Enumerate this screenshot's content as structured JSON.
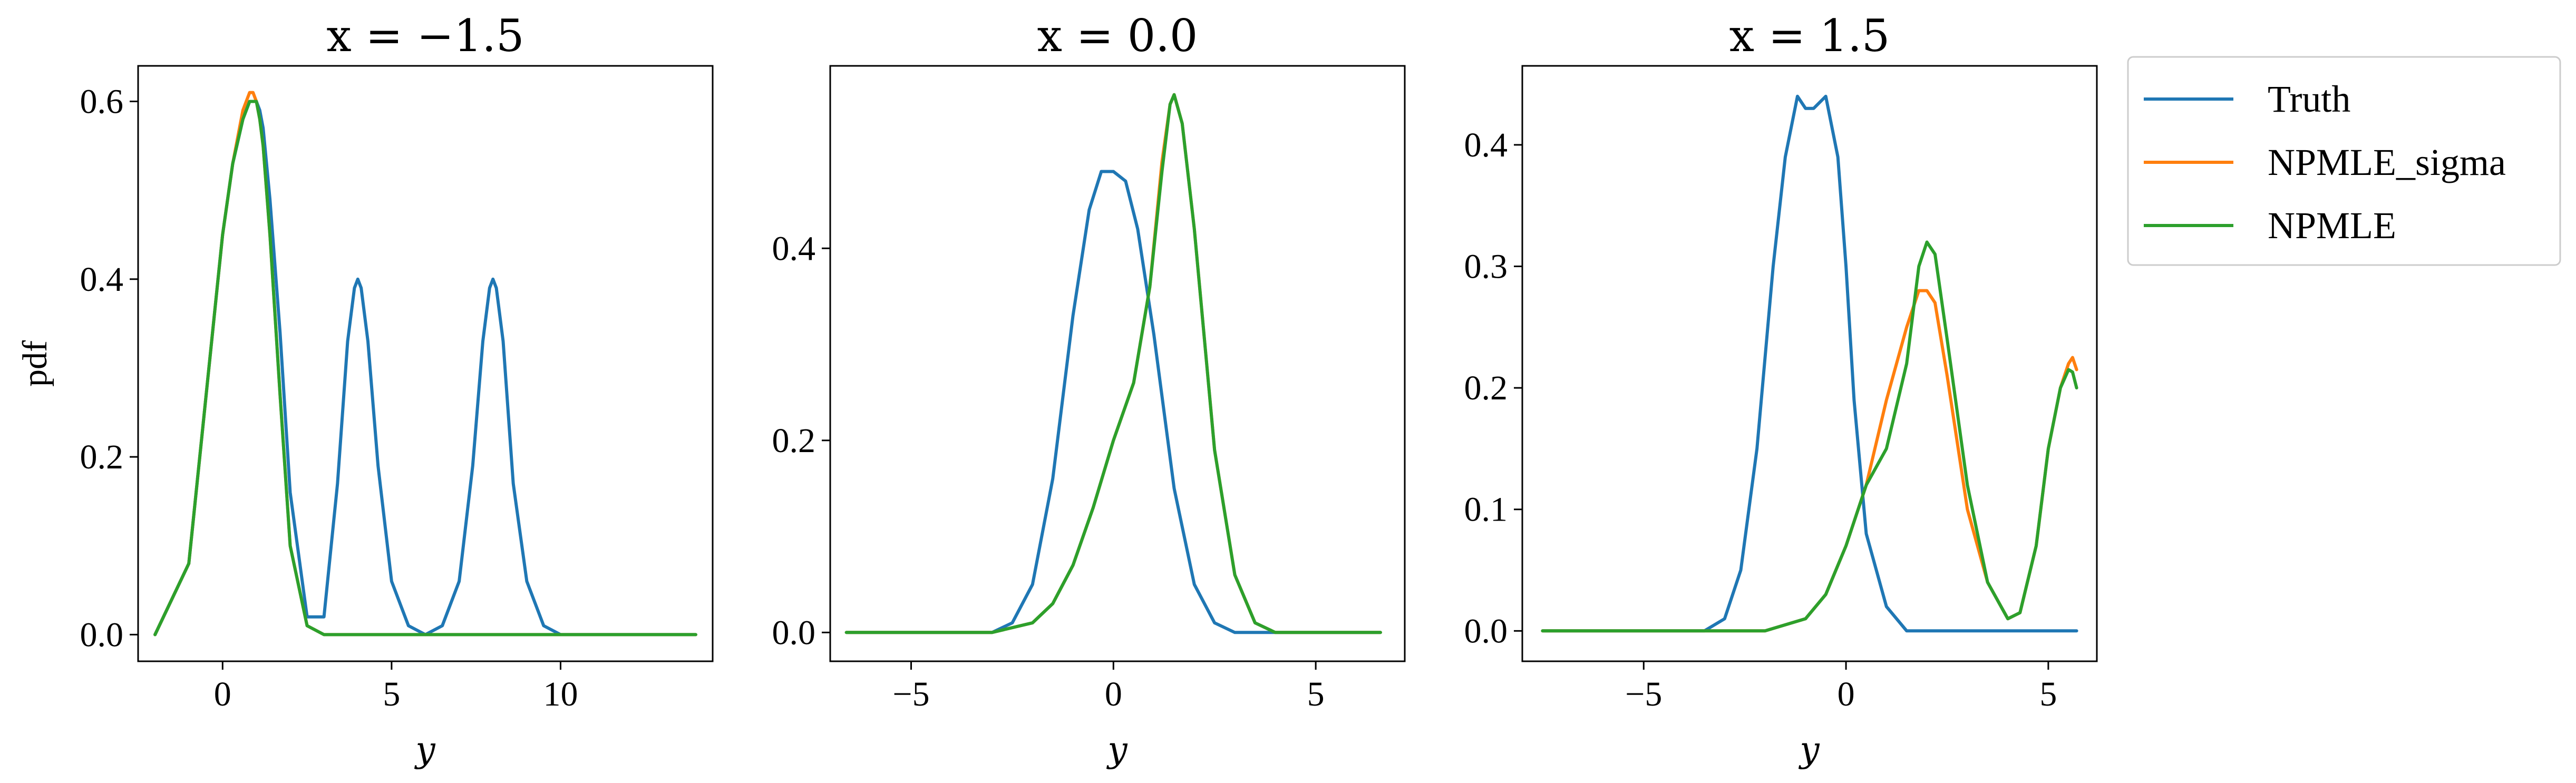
{
  "chart_data": [
    {
      "type": "line",
      "title": "x = −1.5",
      "xlabel": "y",
      "ylabel": "pdf",
      "xlim": [
        -2.5,
        14.5
      ],
      "ylim": [
        -0.03,
        0.64
      ],
      "xticks": [
        0,
        5,
        10
      ],
      "yticks": [
        0.0,
        0.2,
        0.4,
        0.6
      ],
      "series": [
        {
          "name": "Truth",
          "x": [
            -2,
            -1,
            0,
            0.3,
            0.6,
            0.8,
            0.9,
            1,
            1.1,
            1.2,
            1.4,
            1.7,
            2,
            2.5,
            3,
            3.4,
            3.7,
            3.9,
            4,
            4.1,
            4.3,
            4.6,
            5,
            5.5,
            6,
            6.5,
            7,
            7.4,
            7.7,
            7.9,
            8,
            8.1,
            8.3,
            8.6,
            9,
            9.5,
            10,
            12,
            14
          ],
          "y": [
            0.0,
            0.08,
            0.45,
            0.53,
            0.58,
            0.6,
            0.6,
            0.6,
            0.59,
            0.57,
            0.49,
            0.34,
            0.16,
            0.02,
            0.02,
            0.17,
            0.33,
            0.39,
            0.4,
            0.39,
            0.33,
            0.19,
            0.06,
            0.01,
            0.0,
            0.01,
            0.06,
            0.19,
            0.33,
            0.39,
            0.4,
            0.39,
            0.33,
            0.17,
            0.06,
            0.01,
            0.0,
            0.0,
            0.0
          ]
        },
        {
          "name": "NPMLE_sigma",
          "x": [
            -2,
            -1,
            0,
            0.3,
            0.6,
            0.8,
            0.9,
            1,
            1.1,
            1.2,
            1.4,
            1.7,
            2,
            2.5,
            3,
            5,
            10,
            14
          ],
          "y": [
            0.0,
            0.08,
            0.45,
            0.53,
            0.59,
            0.61,
            0.61,
            0.6,
            0.58,
            0.55,
            0.45,
            0.27,
            0.1,
            0.01,
            0.0,
            0.0,
            0.0,
            0.0
          ]
        },
        {
          "name": "NPMLE",
          "x": [
            -2,
            -1,
            0,
            0.3,
            0.6,
            0.8,
            0.9,
            1,
            1.1,
            1.2,
            1.4,
            1.7,
            2,
            2.5,
            3,
            5,
            10,
            14
          ],
          "y": [
            0.0,
            0.08,
            0.45,
            0.53,
            0.58,
            0.6,
            0.6,
            0.6,
            0.58,
            0.55,
            0.45,
            0.27,
            0.1,
            0.01,
            0.0,
            0.0,
            0.0,
            0.0
          ]
        }
      ]
    },
    {
      "type": "line",
      "title": "x = 0.0",
      "xlabel": "y",
      "ylabel": "",
      "xlim": [
        -7.0,
        7.2
      ],
      "ylim": [
        -0.03,
        0.59
      ],
      "xticks": [
        -5,
        0,
        5
      ],
      "yticks": [
        0.0,
        0.2,
        0.4
      ],
      "series": [
        {
          "name": "Truth",
          "x": [
            -6.6,
            -3,
            -2.5,
            -2,
            -1.5,
            -1,
            -0.6,
            -0.3,
            0,
            0.3,
            0.6,
            1,
            1.5,
            2,
            2.5,
            3,
            6.6
          ],
          "y": [
            0.0,
            0.0,
            0.01,
            0.05,
            0.16,
            0.33,
            0.44,
            0.48,
            0.48,
            0.47,
            0.42,
            0.31,
            0.15,
            0.05,
            0.01,
            0.0,
            0.0
          ]
        },
        {
          "name": "NPMLE_sigma",
          "x": [
            -6.6,
            -3,
            -2,
            -1.5,
            -1,
            -0.5,
            0,
            0.5,
            0.9,
            1.2,
            1.4,
            1.5,
            1.7,
            2,
            2.5,
            3,
            3.5,
            4,
            6.6
          ],
          "y": [
            0.0,
            0.0,
            0.01,
            0.03,
            0.07,
            0.13,
            0.2,
            0.26,
            0.36,
            0.49,
            0.55,
            0.56,
            0.53,
            0.42,
            0.19,
            0.06,
            0.01,
            0.0,
            0.0
          ]
        },
        {
          "name": "NPMLE",
          "x": [
            -6.6,
            -3,
            -2,
            -1.5,
            -1,
            -0.5,
            0,
            0.5,
            0.9,
            1.2,
            1.4,
            1.5,
            1.7,
            2,
            2.5,
            3,
            3.5,
            4,
            6.6
          ],
          "y": [
            0.0,
            0.0,
            0.01,
            0.03,
            0.07,
            0.13,
            0.2,
            0.26,
            0.36,
            0.48,
            0.55,
            0.56,
            0.53,
            0.42,
            0.19,
            0.06,
            0.01,
            0.0,
            0.0
          ]
        }
      ]
    },
    {
      "type": "line",
      "title": "x = 1.5",
      "xlabel": "y",
      "ylabel": "",
      "xlim": [
        -8.0,
        6.2
      ],
      "ylim": [
        -0.025,
        0.465
      ],
      "xticks": [
        -5,
        0,
        5
      ],
      "yticks": [
        0.0,
        0.1,
        0.2,
        0.3,
        0.4
      ],
      "series": [
        {
          "name": "Truth",
          "x": [
            -7.5,
            -3.5,
            -3,
            -2.6,
            -2.2,
            -1.8,
            -1.5,
            -1.2,
            -1,
            -0.8,
            -0.5,
            -0.2,
            0,
            0.2,
            0.5,
            1,
            1.5,
            2,
            5.7
          ],
          "y": [
            0.0,
            0.0,
            0.01,
            0.05,
            0.15,
            0.3,
            0.39,
            0.44,
            0.43,
            0.43,
            0.44,
            0.39,
            0.3,
            0.19,
            0.08,
            0.02,
            0.0,
            0.0,
            0.0
          ]
        },
        {
          "name": "NPMLE_sigma",
          "x": [
            -7.5,
            -2,
            -1,
            -0.5,
            0,
            0.5,
            1,
            1.5,
            1.8,
            2,
            2.2,
            2.5,
            3,
            3.5,
            4,
            4.3,
            4.7,
            5,
            5.3,
            5.5,
            5.6,
            5.7
          ],
          "y": [
            0.0,
            0.0,
            0.01,
            0.03,
            0.07,
            0.12,
            0.19,
            0.25,
            0.28,
            0.28,
            0.27,
            0.21,
            0.1,
            0.04,
            0.01,
            0.015,
            0.07,
            0.15,
            0.2,
            0.22,
            0.225,
            0.215
          ]
        },
        {
          "name": "NPMLE",
          "x": [
            -7.5,
            -2,
            -1,
            -0.5,
            0,
            0.5,
            1,
            1.5,
            1.8,
            2,
            2.2,
            2.5,
            3,
            3.5,
            4,
            4.3,
            4.7,
            5,
            5.3,
            5.5,
            5.6,
            5.7
          ],
          "y": [
            0.0,
            0.0,
            0.01,
            0.03,
            0.07,
            0.12,
            0.15,
            0.22,
            0.3,
            0.32,
            0.31,
            0.24,
            0.12,
            0.04,
            0.01,
            0.015,
            0.07,
            0.15,
            0.2,
            0.215,
            0.213,
            0.2
          ]
        }
      ]
    }
  ],
  "legend": {
    "placement": "outside-right",
    "items": [
      "Truth",
      "NPMLE_sigma",
      "NPMLE"
    ]
  },
  "colors": {
    "Truth": "#1f77b4",
    "NPMLE_sigma": "#ff7f0e",
    "NPMLE": "#2ca02c"
  }
}
